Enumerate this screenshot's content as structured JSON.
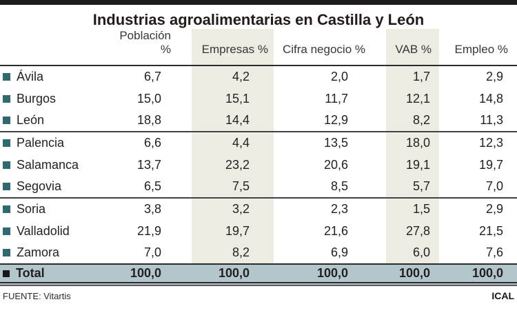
{
  "title": "Industrias agroalimentarias en Castilla y León",
  "table": {
    "columns": [
      "Población %",
      "Empresas %",
      "Cifra negocio %",
      "VAB %",
      "Empleo %"
    ],
    "highlighted_columns": [
      "Empresas %",
      "VAB %"
    ],
    "rows": [
      {
        "name": "Ávila",
        "values": [
          "6,7",
          "4,2",
          "2,0",
          "1,7",
          "2,9"
        ]
      },
      {
        "name": "Burgos",
        "values": [
          "15,0",
          "15,1",
          "11,7",
          "12,1",
          "14,8"
        ]
      },
      {
        "name": "León",
        "values": [
          "18,8",
          "14,4",
          "12,9",
          "8,2",
          "11,3"
        ]
      },
      {
        "name": "Palencia",
        "values": [
          "6,6",
          "4,4",
          "13,5",
          "18,0",
          "12,3"
        ]
      },
      {
        "name": "Salamanca",
        "values": [
          "13,7",
          "23,2",
          "20,6",
          "19,1",
          "19,7"
        ]
      },
      {
        "name": "Segovia",
        "values": [
          "6,5",
          "7,5",
          "8,5",
          "5,7",
          "7,0"
        ]
      },
      {
        "name": "Soria",
        "values": [
          "3,8",
          "3,2",
          "2,3",
          "1,5",
          "2,9"
        ]
      },
      {
        "name": "Valladolid",
        "values": [
          "21,9",
          "19,7",
          "21,6",
          "27,8",
          "21,5"
        ]
      },
      {
        "name": "Zamora",
        "values": [
          "7,0",
          "8,2",
          "6,9",
          "6,0",
          "7,6"
        ]
      }
    ],
    "group_start_rows": [
      "Palencia",
      "Soria"
    ],
    "total": {
      "name": "Total",
      "values": [
        "100,0",
        "100,0",
        "100,0",
        "100,0",
        "100,0"
      ]
    }
  },
  "footer": {
    "source": "FUENTE: Vitartis",
    "credit": "ICAL"
  },
  "colors": {
    "bullet": "#2f6b6e",
    "column_band": "#edece3",
    "total_row_bg": "#b2c6cc",
    "top_bar": "#1f1a1b",
    "text": "#231f20"
  },
  "chart_data": {
    "type": "table",
    "title": "Industrias agroalimentarias en Castilla y León",
    "categories": [
      "Ávila",
      "Burgos",
      "León",
      "Palencia",
      "Salamanca",
      "Segovia",
      "Soria",
      "Valladolid",
      "Zamora",
      "Total"
    ],
    "series": [
      {
        "name": "Población %",
        "values": [
          6.7,
          15.0,
          18.8,
          6.6,
          13.7,
          6.5,
          3.8,
          21.9,
          7.0,
          100.0
        ]
      },
      {
        "name": "Empresas %",
        "values": [
          4.2,
          15.1,
          14.4,
          4.4,
          23.2,
          7.5,
          3.2,
          19.7,
          8.2,
          100.0
        ]
      },
      {
        "name": "Cifra negocio %",
        "values": [
          2.0,
          11.7,
          12.9,
          13.5,
          20.6,
          8.5,
          2.3,
          21.6,
          6.9,
          100.0
        ]
      },
      {
        "name": "VAB %",
        "values": [
          1.7,
          12.1,
          8.2,
          18.0,
          19.1,
          5.7,
          1.5,
          27.8,
          6.0,
          100.0
        ]
      },
      {
        "name": "Empleo %",
        "values": [
          2.9,
          14.8,
          11.3,
          12.3,
          19.7,
          7.0,
          2.9,
          21.5,
          7.6,
          100.0
        ]
      }
    ],
    "number_format": "comma-decimal",
    "source": "FUENTE: Vitartis",
    "credit": "ICAL"
  }
}
